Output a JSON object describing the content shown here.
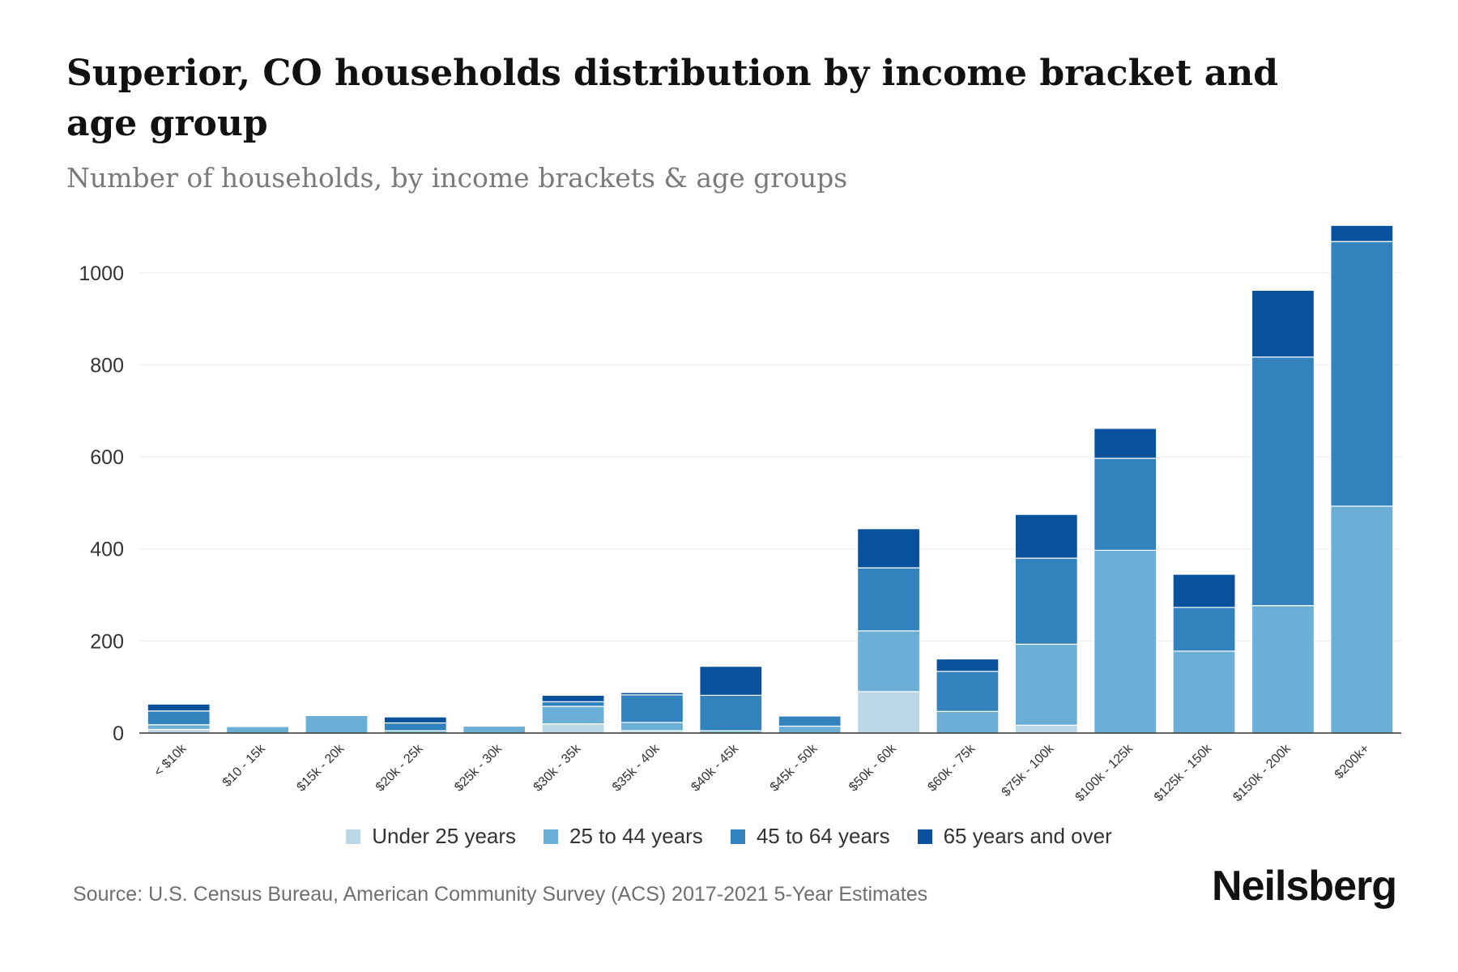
{
  "header": {
    "title": "Superior, CO households distribution by income bracket and age group",
    "subtitle": "Number of households, by income brackets & age groups"
  },
  "footer": {
    "source": "Source: U.S. Census Bureau, American Community Survey (ACS) 2017-2021 5-Year Estimates",
    "brand": "Neilsberg"
  },
  "colors": {
    "under_25": "#bcd7e8",
    "age_25_44": "#6baed6",
    "age_45_64": "#3182bd",
    "age_65_plus": "#08519c",
    "gridline": "#ececec",
    "axis": "#333333"
  },
  "chart_data": {
    "type": "bar",
    "stacked": true,
    "title": "Superior, CO households distribution by income bracket and age group",
    "subtitle": "Number of households, by income brackets & age groups",
    "xlabel": "",
    "ylabel": "",
    "ylim": [
      0,
      1100
    ],
    "yticks": [
      0,
      200,
      400,
      600,
      800,
      1000
    ],
    "grid": true,
    "legend_position": "bottom",
    "categories": [
      "< $10k",
      "$10 - 15k",
      "$15k - 20k",
      "$20k - 25k",
      "$25k - 30k",
      "$30k - 35k",
      "$35k - 40k",
      "$40k - 45k",
      "$45k - 50k",
      "$50k - 60k",
      "$60k - 75k",
      "$75k - 100k",
      "$100k - 125k",
      "$125k - 150k",
      "$150k - 200k",
      "$200k+"
    ],
    "series": [
      {
        "name": "Under 25 years",
        "color": "#bcd7e8",
        "values": [
          8,
          0,
          0,
          0,
          0,
          20,
          5,
          0,
          0,
          90,
          0,
          17,
          0,
          0,
          0,
          0
        ]
      },
      {
        "name": "25 to 44 years",
        "color": "#6baed6",
        "values": [
          10,
          14,
          38,
          5,
          15,
          38,
          18,
          5,
          15,
          132,
          47,
          176,
          397,
          178,
          277,
          493
        ]
      },
      {
        "name": "45 to 64 years",
        "color": "#3182bd",
        "values": [
          30,
          0,
          0,
          17,
          0,
          10,
          60,
          77,
          22,
          137,
          87,
          187,
          200,
          95,
          540,
          575
        ]
      },
      {
        "name": "65 years and over",
        "color": "#08519c",
        "values": [
          15,
          0,
          0,
          13,
          0,
          14,
          5,
          63,
          0,
          85,
          27,
          95,
          65,
          72,
          145,
          35
        ]
      }
    ]
  }
}
